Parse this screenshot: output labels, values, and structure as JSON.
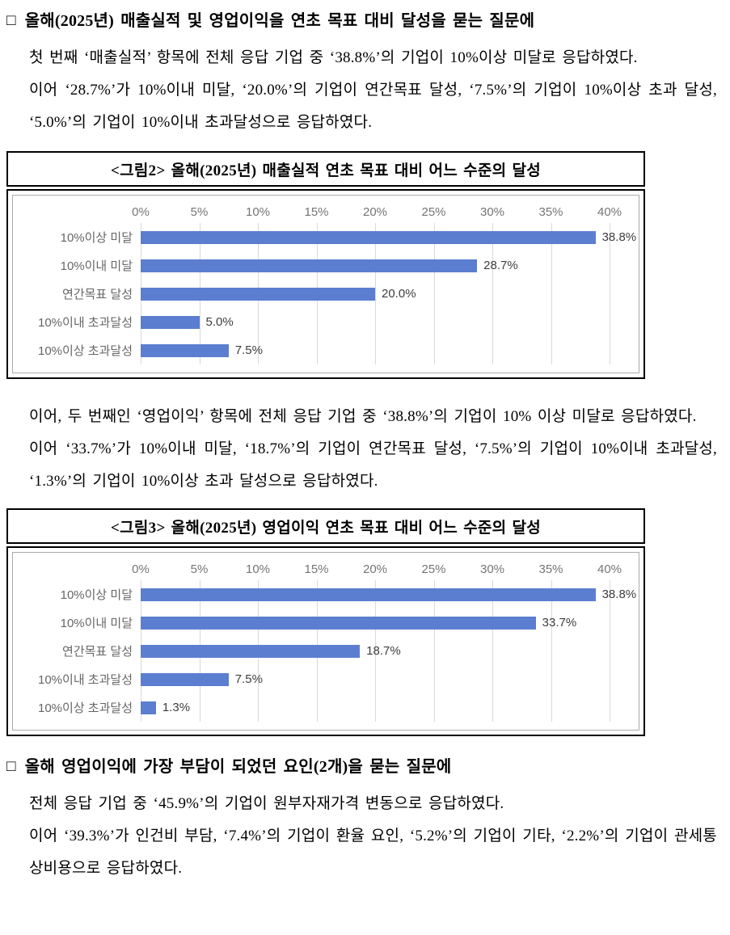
{
  "theme": {
    "bar_color": "#5b7ed1",
    "gridline_color": "#d9d9d9",
    "axis_text_color": "#757575",
    "category_text_color": "#666666",
    "value_text_color": "#3d3d3d"
  },
  "section1": {
    "marker": "□",
    "heading": "올해(2025년) 매출실적 및 영업이익을 연초 목표 대비 달성을 묻는 질문에",
    "paragraphs": [
      "첫 번째 ‘매출실적’ 항목에 전체 응답 기업 중 ‘38.8%’의 기업이 10%이상 미달로 응답하였다.",
      "이어 ‘28.7%’가 10%이내 미달, ‘20.0%’의 기업이 연간목표 달성, ‘7.5%’의 기업이 10%이상 초과 달성, ‘5.0%’의 기업이 10%이내 초과달성으로 응답하였다."
    ]
  },
  "section2": {
    "paragraphs": [
      "이어, 두 번째인 ‘영업이익’ 항목에 전체 응답 기업 중 ‘38.8%’의 기업이 10% 이상 미달로 응답하였다.",
      "이어 ‘33.7%’가 10%이내 미달, ‘18.7%’의 기업이 연간목표 달성, ‘7.5%’의 기업이 10%이내 초과달성, ‘1.3%’의 기업이 10%이상 초과 달성으로 응답하였다."
    ]
  },
  "section3": {
    "marker": "□",
    "heading": "올해 영업이익에 가장 부담이 되었던 요인(2개)을 묻는 질문에",
    "paragraphs": [
      "전체 응답 기업 중 ‘45.9%’의 기업이 원부자재가격 변동으로 응답하였다.",
      "이어 ‘39.3%’가 인건비 부담, ‘7.4%’의 기업이 환율 요인, ‘5.2%’의 기업이 기타, ‘2.2%’의 기업이 관세통상비용으로 응답하였다."
    ]
  },
  "chart_data": [
    {
      "type": "bar",
      "orientation": "horizontal",
      "title": "<그림2> 올해(2025년) 매출실적 연초 목표 대비 어느 수준의 달성",
      "axis": {
        "min": 0,
        "max": 40,
        "unit": "%",
        "ticks": [
          "0%",
          "5%",
          "10%",
          "15%",
          "20%",
          "25%",
          "30%",
          "35%",
          "40%"
        ]
      },
      "grid": true,
      "legend": "none",
      "rows": [
        {
          "label": "10%이상 미달",
          "value": 38.8,
          "value_label": "38.8%"
        },
        {
          "label": "10%이내 미달",
          "value": 28.7,
          "value_label": "28.7%"
        },
        {
          "label": "연간목표 달성",
          "value": 20.0,
          "value_label": "20.0%"
        },
        {
          "label": "10%이내 초과달성",
          "value": 5.0,
          "value_label": "5.0%"
        },
        {
          "label": "10%이상 초과달성",
          "value": 7.5,
          "value_label": "7.5%"
        }
      ]
    },
    {
      "type": "bar",
      "orientation": "horizontal",
      "title": "<그림3> 올해(2025년) 영업이익 연초 목표 대비 어느 수준의 달성",
      "axis": {
        "min": 0,
        "max": 40,
        "unit": "%",
        "ticks": [
          "0%",
          "5%",
          "10%",
          "15%",
          "20%",
          "25%",
          "30%",
          "35%",
          "40%"
        ]
      },
      "grid": true,
      "legend": "none",
      "rows": [
        {
          "label": "10%이상 미달",
          "value": 38.8,
          "value_label": "38.8%"
        },
        {
          "label": "10%이내 미달",
          "value": 33.7,
          "value_label": "33.7%"
        },
        {
          "label": "연간목표 달성",
          "value": 18.7,
          "value_label": "18.7%"
        },
        {
          "label": "10%이내 초과달성",
          "value": 7.5,
          "value_label": "7.5%"
        },
        {
          "label": "10%이상 초과달성",
          "value": 1.3,
          "value_label": "1.3%"
        }
      ]
    }
  ]
}
